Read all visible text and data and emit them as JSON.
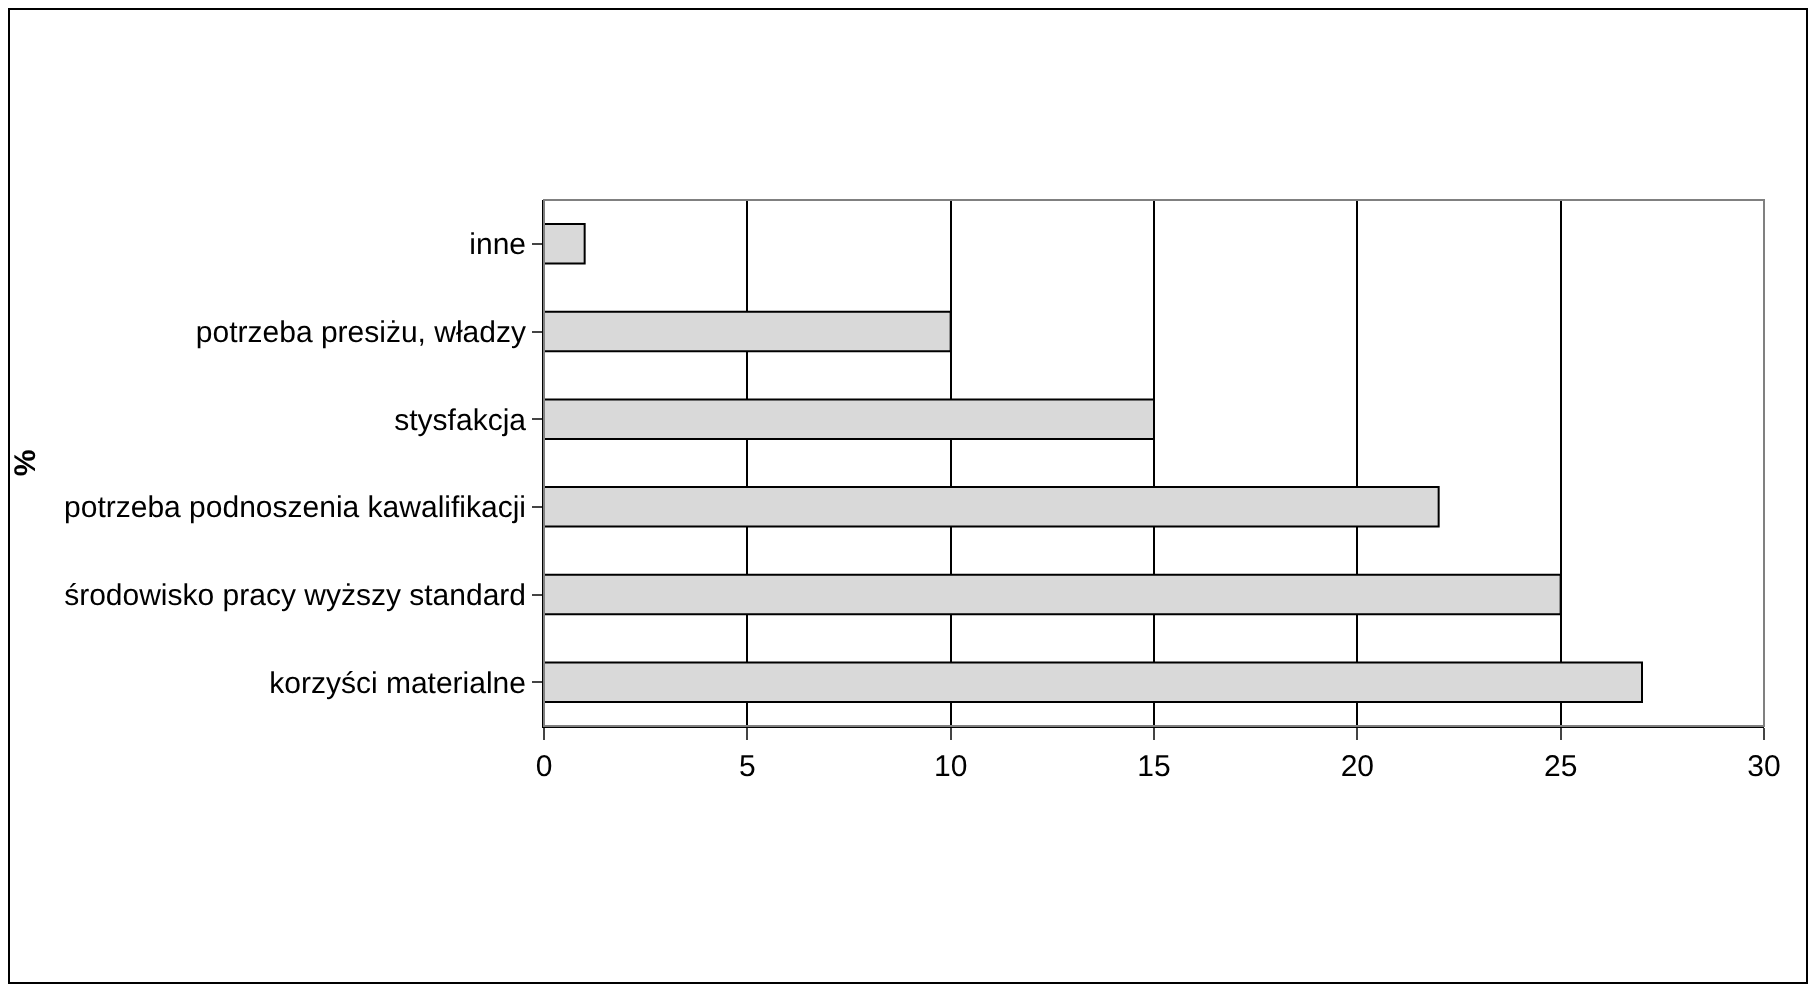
{
  "chart_data": {
    "type": "bar",
    "orientation": "horizontal",
    "ylabel": "%",
    "categories": [
      "inne",
      "potrzeba presiżu, władzy",
      "stysfakcja",
      "potrzeba podnoszenia kawalifikacji",
      "środowisko pracy wyższy standard",
      "korzyści materialne"
    ],
    "values": [
      1,
      10,
      15,
      22,
      25,
      27
    ],
    "color": "#d9d9d9",
    "xlim": [
      0,
      30
    ],
    "xticks": [
      0,
      5,
      10,
      15,
      20,
      25,
      30
    ],
    "grid": "x"
  }
}
